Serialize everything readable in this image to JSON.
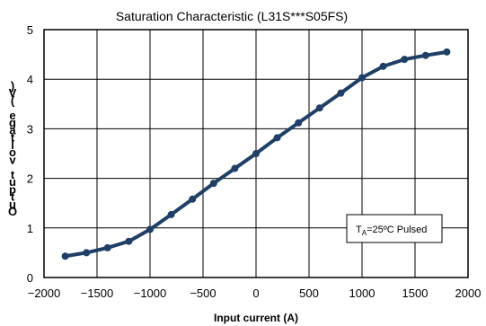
{
  "chart_data": {
    "type": "line",
    "title": "Saturation Characteristic (L31S***S05FS)",
    "xlabel": "Input current (A)",
    "ylabel": ")V( egatlov tuptuO",
    "annotation": {
      "main": "T",
      "sub": "A",
      "rest": "=25ºC Pulsed"
    },
    "xlim": [
      -2000,
      2000
    ],
    "ylim": [
      0,
      5
    ],
    "xticks": [
      -2000,
      -1500,
      -1000,
      -500,
      0,
      500,
      1000,
      1500,
      2000
    ],
    "xtick_labels": [
      "−2000",
      "−1500",
      "−1000",
      "−500",
      "0",
      "500",
      "1000",
      "1500",
      "2000"
    ],
    "yticks": [
      0,
      1,
      2,
      3,
      4,
      5
    ],
    "ytick_labels": [
      "0",
      "1",
      "2",
      "3",
      "4",
      "5"
    ],
    "grid": true,
    "series": [
      {
        "color": "#1F3F66",
        "x": [
          -1800,
          -1600,
          -1400,
          -1200,
          -1000,
          -800,
          -600,
          -400,
          -200,
          0,
          200,
          400,
          600,
          800,
          1000,
          1200,
          1400,
          1600,
          1800
        ],
        "y": [
          0.43,
          0.5,
          0.6,
          0.73,
          0.97,
          1.27,
          1.58,
          1.9,
          2.2,
          2.5,
          2.82,
          3.12,
          3.42,
          3.72,
          4.03,
          4.26,
          4.4,
          4.48,
          4.55
        ]
      }
    ]
  }
}
